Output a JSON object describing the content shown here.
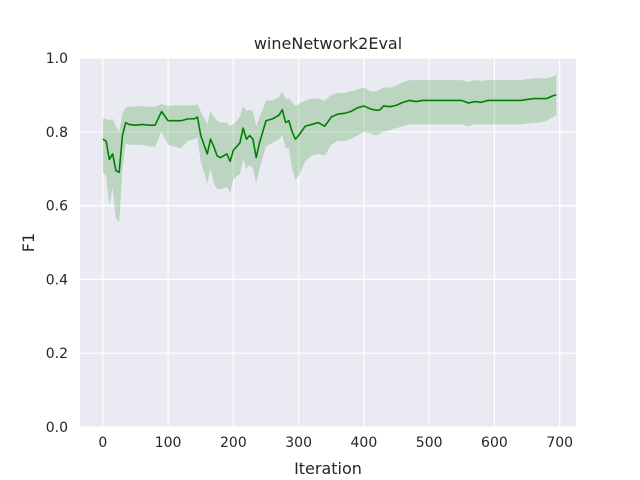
{
  "chart_data": {
    "type": "line",
    "title": "wineNetwork2Eval",
    "xlabel": "Iteration",
    "ylabel": "F1",
    "xlim": [
      -35,
      725
    ],
    "ylim": [
      0.0,
      1.0
    ],
    "xticks": [
      0,
      100,
      200,
      300,
      400,
      500,
      600,
      700
    ],
    "yticks": [
      0.0,
      0.2,
      0.4,
      0.6,
      0.8,
      1.0
    ],
    "xtick_labels": [
      "0",
      "100",
      "200",
      "300",
      "400",
      "500",
      "600",
      "700"
    ],
    "ytick_labels": [
      "0.0",
      "0.2",
      "0.4",
      "0.6",
      "0.8",
      "1.0"
    ],
    "grid": true,
    "background": "#eaeaf2",
    "line_color": "#008000",
    "band_color": "#008000",
    "series": [
      {
        "x": [
          0,
          5,
          10,
          15,
          20,
          25,
          30,
          35,
          40,
          50,
          60,
          70,
          80,
          90,
          100,
          110,
          120,
          130,
          140,
          145,
          150,
          160,
          165,
          170,
          175,
          180,
          190,
          195,
          200,
          205,
          210,
          215,
          220,
          225,
          230,
          235,
          240,
          245,
          250,
          260,
          270,
          275,
          280,
          285,
          290,
          295,
          300,
          310,
          320,
          330,
          340,
          350,
          360,
          370,
          380,
          390,
          400,
          410,
          420,
          425,
          430,
          440,
          450,
          460,
          470,
          480,
          490,
          500,
          510,
          520,
          540,
          550,
          560,
          570,
          580,
          590,
          600,
          620,
          640,
          660,
          670,
          680,
          690,
          695
        ],
        "y": [
          0.78,
          0.775,
          0.725,
          0.74,
          0.695,
          0.69,
          0.79,
          0.825,
          0.82,
          0.818,
          0.82,
          0.818,
          0.818,
          0.855,
          0.83,
          0.83,
          0.83,
          0.835,
          0.835,
          0.84,
          0.79,
          0.74,
          0.78,
          0.76,
          0.735,
          0.73,
          0.74,
          0.72,
          0.75,
          0.76,
          0.77,
          0.81,
          0.78,
          0.79,
          0.78,
          0.73,
          0.77,
          0.8,
          0.83,
          0.835,
          0.845,
          0.86,
          0.825,
          0.83,
          0.8,
          0.78,
          0.79,
          0.815,
          0.82,
          0.825,
          0.815,
          0.84,
          0.848,
          0.85,
          0.855,
          0.865,
          0.87,
          0.862,
          0.858,
          0.86,
          0.87,
          0.868,
          0.872,
          0.88,
          0.885,
          0.882,
          0.885,
          0.885,
          0.885,
          0.885,
          0.885,
          0.885,
          0.878,
          0.882,
          0.88,
          0.885,
          0.885,
          0.885,
          0.885,
          0.89,
          0.89,
          0.89,
          0.898,
          0.9
        ],
        "lower": [
          0.69,
          0.68,
          0.6,
          0.65,
          0.565,
          0.555,
          0.7,
          0.77,
          0.765,
          0.765,
          0.765,
          0.76,
          0.76,
          0.8,
          0.765,
          0.76,
          0.755,
          0.775,
          0.78,
          0.785,
          0.72,
          0.66,
          0.7,
          0.66,
          0.645,
          0.645,
          0.65,
          0.635,
          0.67,
          0.68,
          0.685,
          0.725,
          0.7,
          0.71,
          0.7,
          0.66,
          0.7,
          0.73,
          0.76,
          0.77,
          0.78,
          0.79,
          0.755,
          0.755,
          0.7,
          0.67,
          0.68,
          0.72,
          0.735,
          0.74,
          0.735,
          0.765,
          0.775,
          0.775,
          0.78,
          0.79,
          0.8,
          0.795,
          0.79,
          0.795,
          0.8,
          0.805,
          0.81,
          0.815,
          0.82,
          0.82,
          0.82,
          0.82,
          0.82,
          0.82,
          0.82,
          0.82,
          0.815,
          0.82,
          0.82,
          0.82,
          0.82,
          0.82,
          0.82,
          0.825,
          0.825,
          0.83,
          0.84,
          0.845
        ],
        "upper": [
          0.835,
          0.835,
          0.83,
          0.835,
          0.815,
          0.8,
          0.85,
          0.865,
          0.868,
          0.868,
          0.87,
          0.868,
          0.868,
          0.875,
          0.87,
          0.872,
          0.872,
          0.872,
          0.872,
          0.875,
          0.855,
          0.82,
          0.855,
          0.84,
          0.83,
          0.825,
          0.825,
          0.815,
          0.82,
          0.83,
          0.84,
          0.87,
          0.855,
          0.86,
          0.855,
          0.815,
          0.84,
          0.86,
          0.885,
          0.885,
          0.895,
          0.91,
          0.89,
          0.89,
          0.88,
          0.87,
          0.875,
          0.885,
          0.89,
          0.89,
          0.885,
          0.9,
          0.905,
          0.905,
          0.91,
          0.915,
          0.92,
          0.91,
          0.91,
          0.915,
          0.92,
          0.92,
          0.925,
          0.935,
          0.94,
          0.94,
          0.94,
          0.94,
          0.94,
          0.94,
          0.94,
          0.94,
          0.935,
          0.94,
          0.938,
          0.94,
          0.94,
          0.94,
          0.94,
          0.945,
          0.945,
          0.945,
          0.95,
          0.955
        ]
      }
    ]
  }
}
